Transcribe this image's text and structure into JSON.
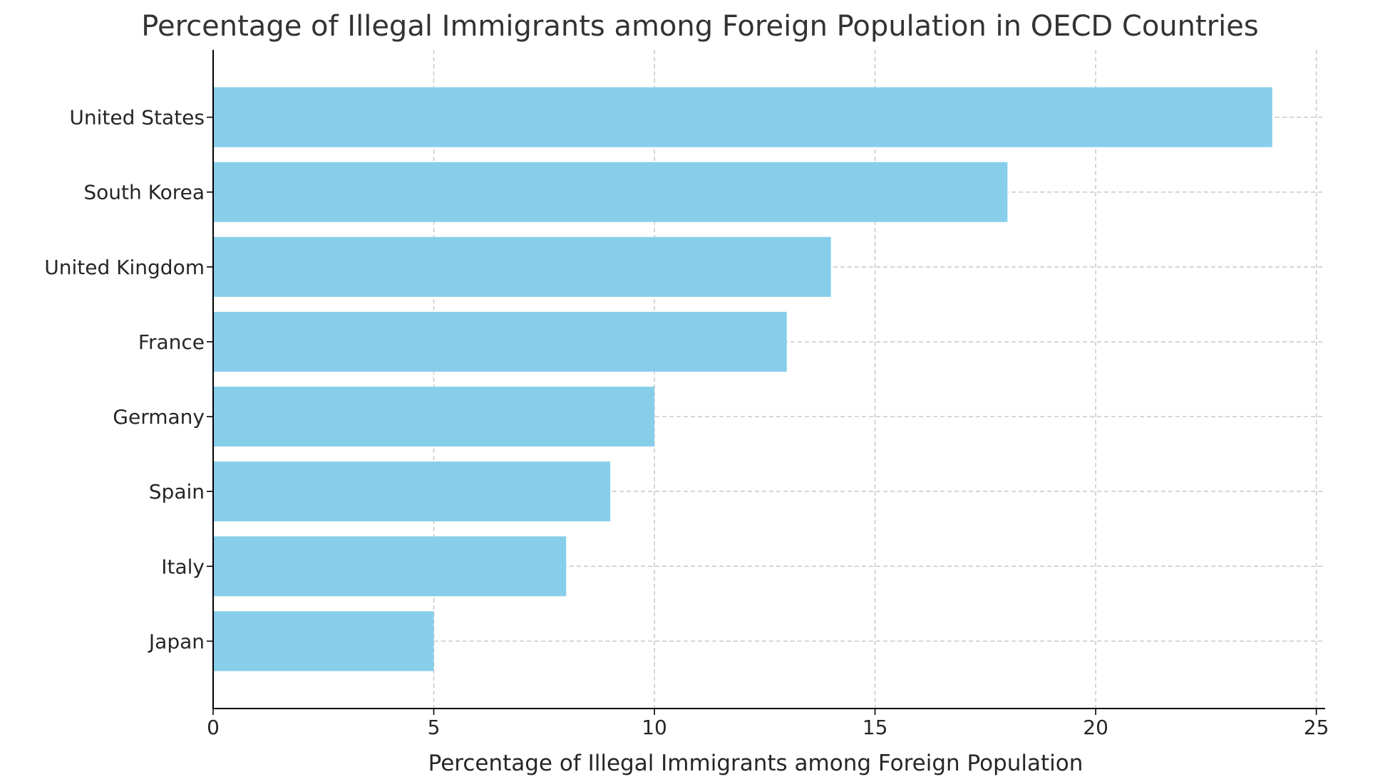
{
  "chart_data": {
    "type": "bar",
    "orientation": "horizontal",
    "title": "Percentage of Illegal Immigrants among Foreign Population in OECD Countries",
    "xlabel": "Percentage of Illegal Immigrants among Foreign Population",
    "ylabel": "",
    "categories": [
      "United States",
      "South Korea",
      "United Kingdom",
      "France",
      "Germany",
      "Spain",
      "Italy",
      "Japan"
    ],
    "values": [
      24,
      18,
      14,
      13,
      10,
      9,
      8,
      5
    ],
    "xlim": [
      0,
      25.2
    ],
    "xticks": [
      0,
      5,
      10,
      15,
      20,
      25
    ],
    "grid": true,
    "colors": {
      "bar": "#87ceeb",
      "grid": "#c8c8c8",
      "axis": "#000000"
    }
  }
}
